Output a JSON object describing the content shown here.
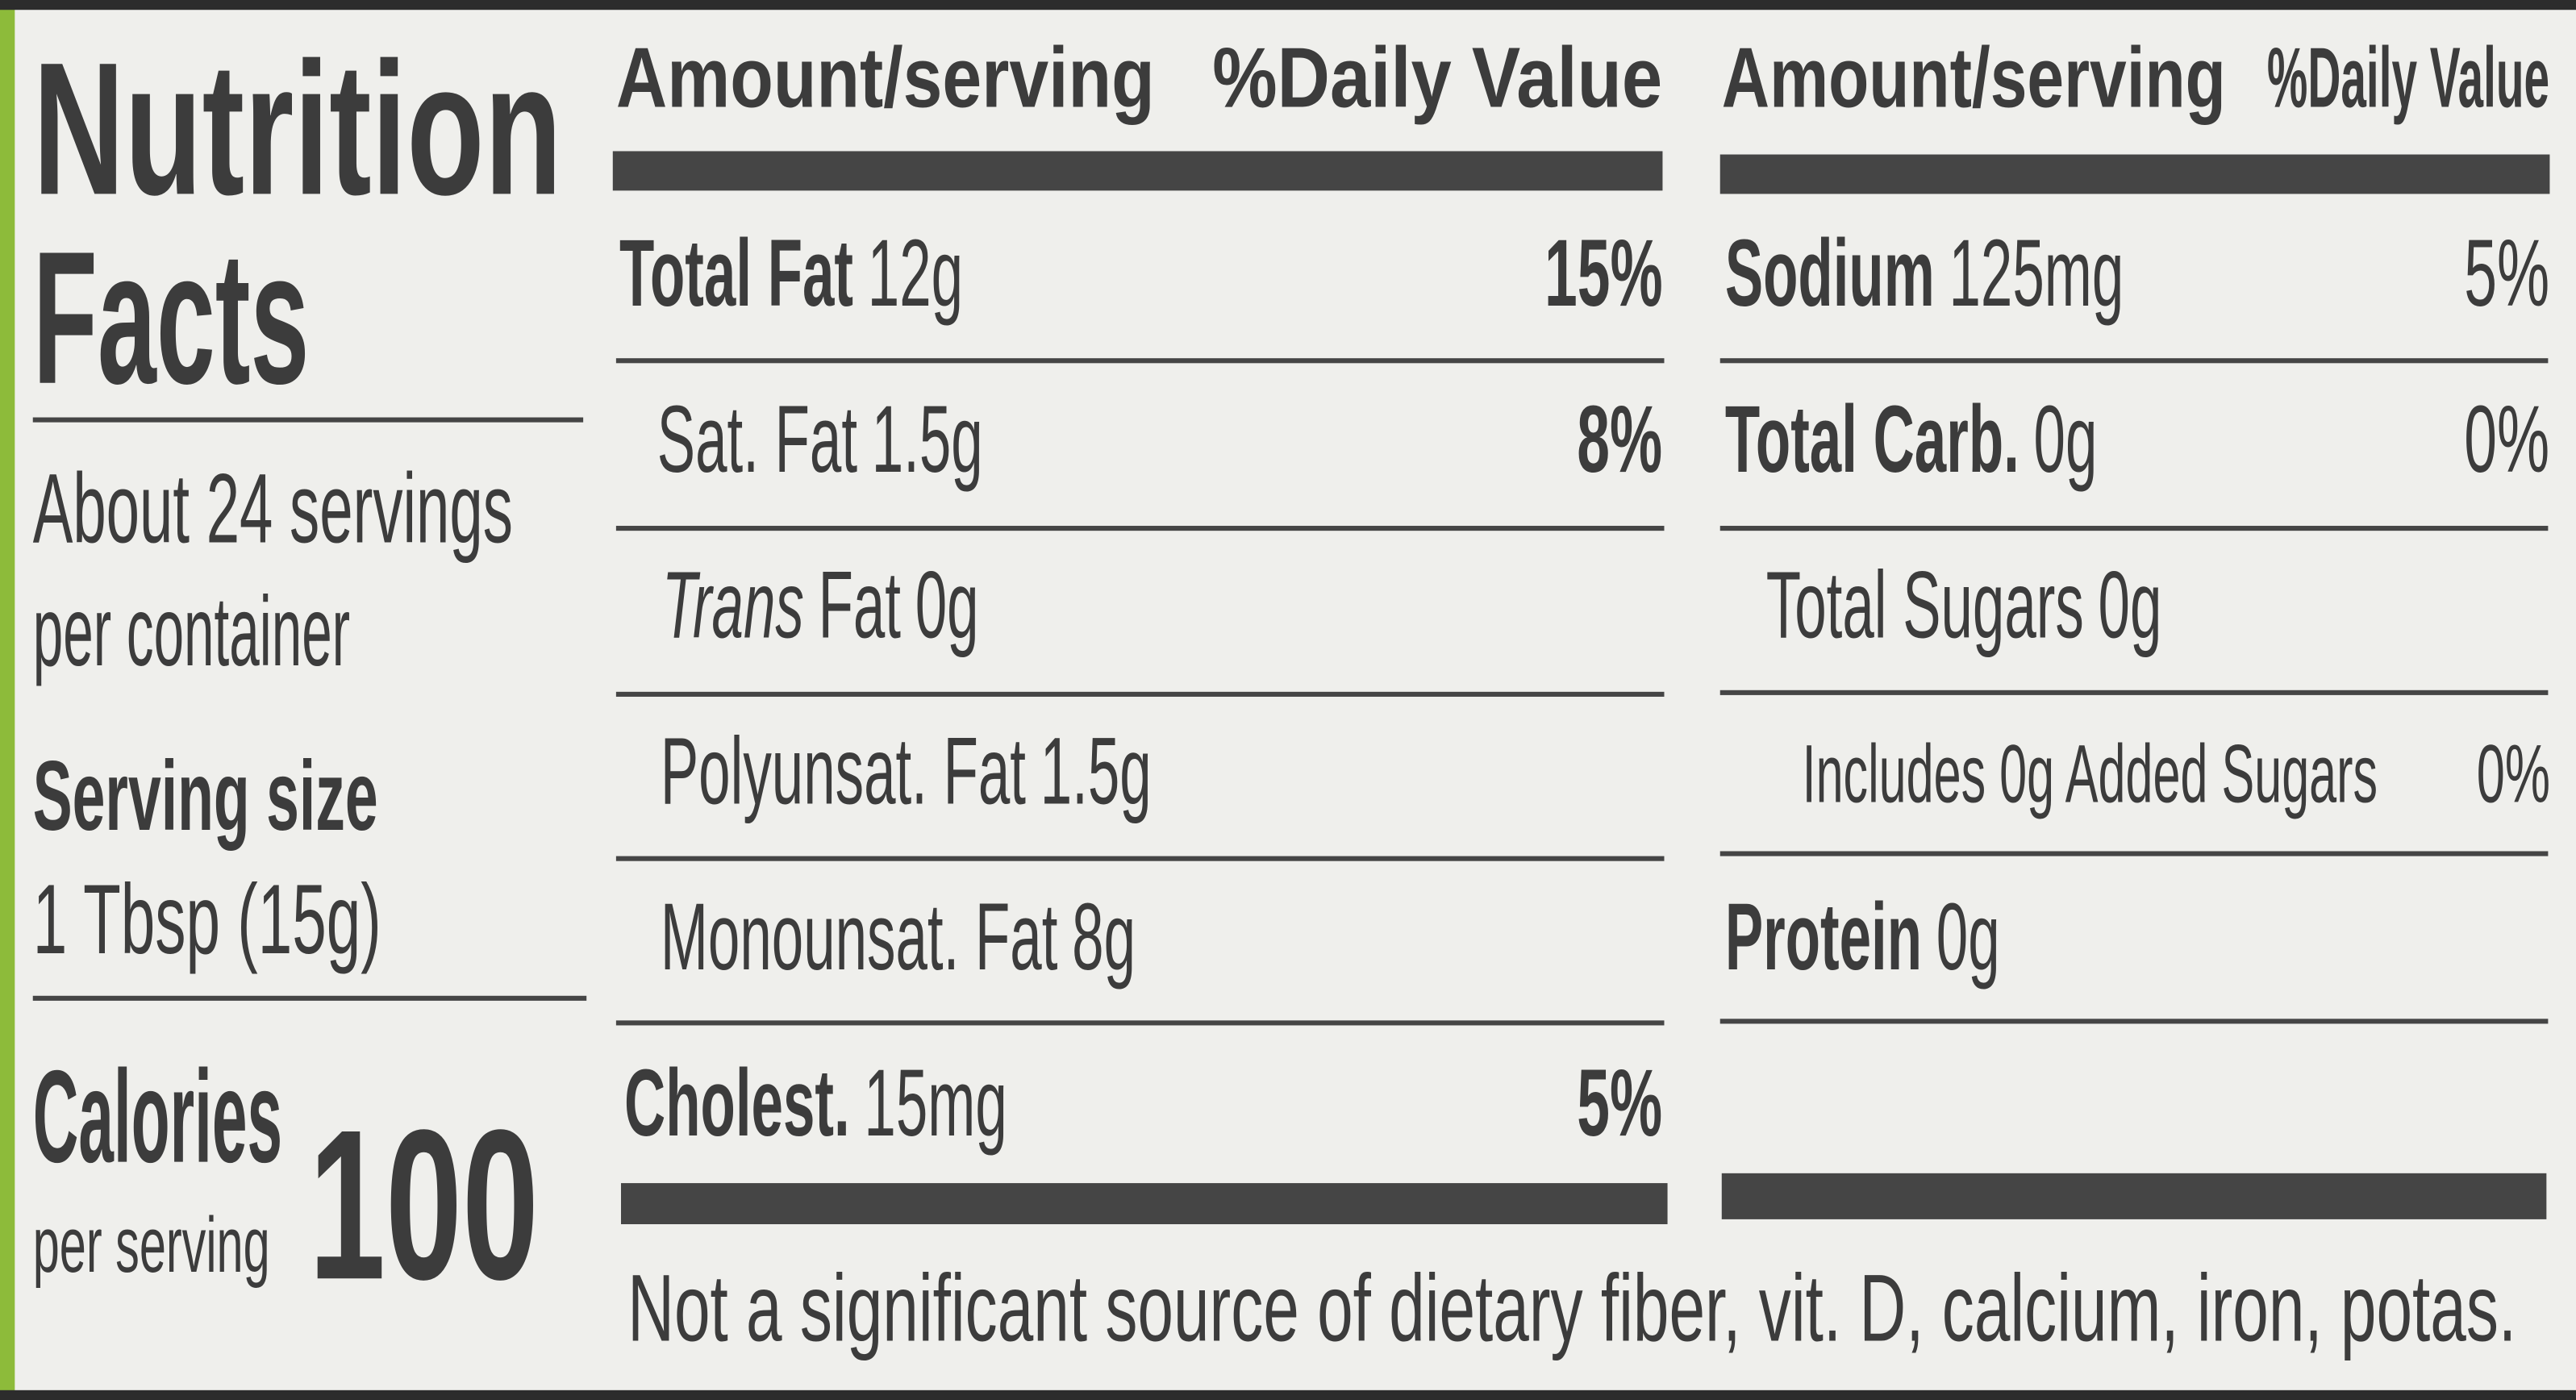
{
  "title": [
    "Nutrition",
    "Facts"
  ],
  "servings": [
    "About 24 servings",
    "per container"
  ],
  "serving_size": {
    "label": "Serving size",
    "value": "1 Tbsp (15g)"
  },
  "calories": {
    "label": "Calories",
    "sub": "per serving",
    "value": "100"
  },
  "columns": [
    {
      "header_amount": "Amount/serving",
      "header_dv": "%Daily Value",
      "rows": [
        {
          "name": "Total Fat",
          "amount": "12g",
          "dv": "15%"
        },
        {
          "name": "Sat. Fat",
          "amount": "1.5g",
          "dv": "8%"
        },
        {
          "name_italic": "Trans",
          "name": "Fat",
          "amount": "0g"
        },
        {
          "name": "Polyunsat. Fat",
          "amount": "1.5g"
        },
        {
          "name": "Monounsat. Fat",
          "amount": "8g"
        },
        {
          "name": "Cholest.",
          "amount": "15mg",
          "dv": "5%"
        }
      ]
    },
    {
      "header_amount": "Amount/serving",
      "header_dv": "%Daily Value",
      "rows": [
        {
          "name": "Sodium",
          "amount": "125mg",
          "dv": "5%"
        },
        {
          "name": "Total Carb.",
          "amount": "0g",
          "dv": "0%"
        },
        {
          "name": "Total Sugars",
          "amount": "0g"
        },
        {
          "name": "Includes 0g Added Sugars",
          "dv": "0%"
        },
        {
          "name": "Protein",
          "amount": "0g"
        }
      ]
    }
  ],
  "footnote": "Not a significant source of dietary fiber, vit. D, calcium, iron, potas."
}
